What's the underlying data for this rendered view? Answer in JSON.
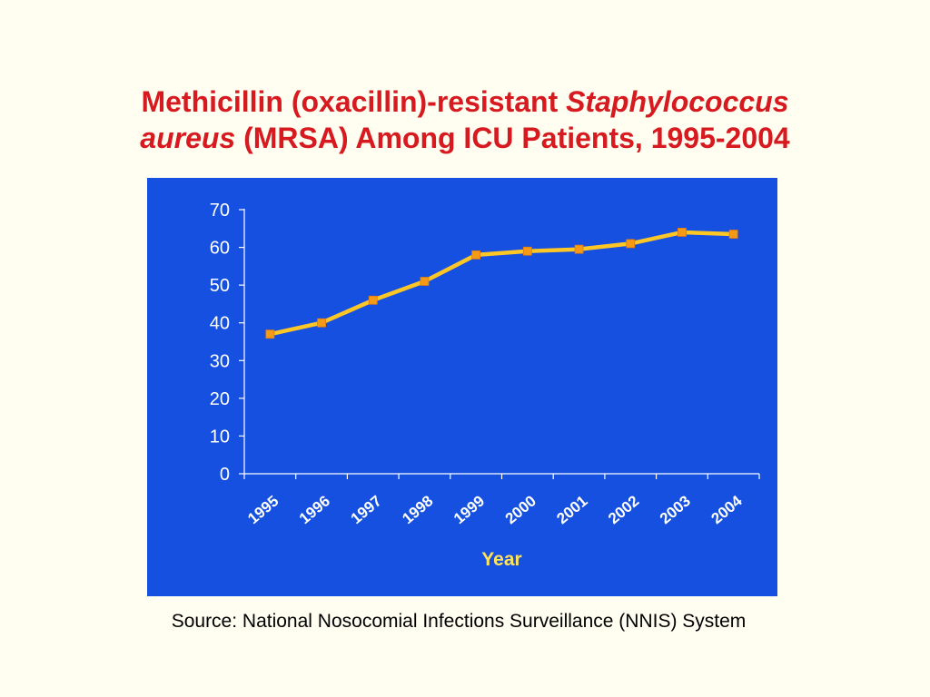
{
  "title": {
    "part1": "Methicillin (oxacillin)-resistant ",
    "italic1": "Staphylococcus",
    "italic2": "aureus",
    "part2": " (MRSA) Among ICU Patients, 1995-2004"
  },
  "source": "Source: National Nosocomial Infections Surveillance (NNIS) System",
  "colors": {
    "panel": "#1550E0",
    "line": "#FFC726",
    "marker": "#F59A16",
    "axis": "#FFFFFF",
    "tick_label": "#FFFFFF",
    "xlabel": "#FFE35A",
    "title": "#D71920"
  },
  "chart_data": {
    "type": "line",
    "categories": [
      "1995",
      "1996",
      "1997",
      "1998",
      "1999",
      "2000",
      "2001",
      "2002",
      "2003",
      "2004"
    ],
    "series": [
      {
        "values": [
          37,
          40,
          46,
          51,
          58,
          59,
          59.5,
          61,
          64,
          63.5
        ]
      }
    ],
    "xlabel": "Year",
    "ylabel": "",
    "ylim": [
      0,
      70
    ],
    "yticks": [
      0,
      10,
      20,
      30,
      40,
      50,
      60,
      70
    ],
    "grid": false,
    "legend": "none"
  }
}
